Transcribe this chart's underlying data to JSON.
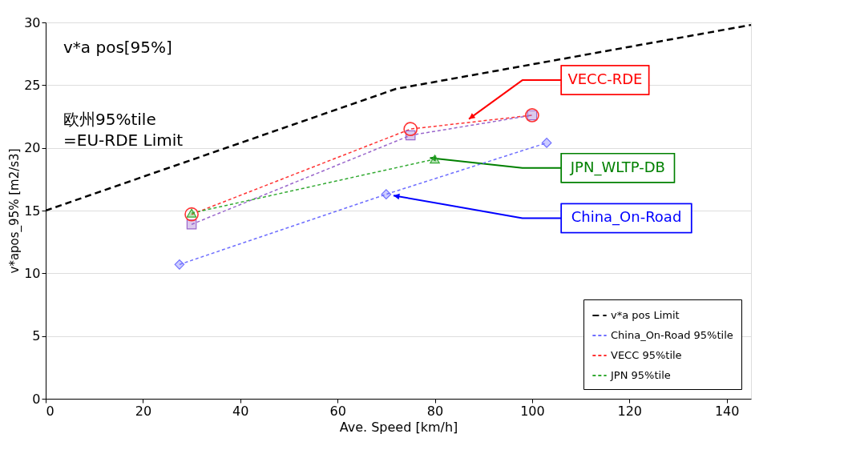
{
  "chart_data": {
    "type": "line",
    "xlabel": "Ave. Speed [km/h]",
    "ylabel": "v*apos_95% [m2/s3]",
    "xlim": [
      0,
      145
    ],
    "xticks": [
      0,
      20,
      40,
      60,
      80,
      100,
      120,
      140
    ],
    "ylim": [
      0,
      30
    ],
    "yticks": [
      0,
      5,
      10,
      15,
      20,
      25,
      30
    ],
    "grid": "y",
    "legend": "bottom right",
    "series": [
      {
        "name": "v*a pos Limit",
        "color": "#000000",
        "line_style": "dashed",
        "marker": "none",
        "x": [
          0,
          72,
          145
        ],
        "values": [
          15.0,
          24.7,
          29.8
        ]
      },
      {
        "name": "China_On-Road 95%tile",
        "color": "#6f6fff",
        "line_style": "dotted",
        "marker": "diamond",
        "x": [
          27.5,
          70,
          103
        ],
        "values": [
          10.7,
          16.3,
          20.4
        ]
      },
      {
        "name": "VECC 95%tile",
        "color": "#ff3333",
        "line_style": "dotted",
        "marker": "circle",
        "x": [
          30,
          75,
          100
        ],
        "values": [
          14.7,
          21.5,
          22.6
        ]
      },
      {
        "color": "#9966cc",
        "line_style": "dotted",
        "marker": "square",
        "x": [
          30,
          75,
          100
        ],
        "values": [
          13.9,
          21.0,
          22.6
        ]
      },
      {
        "name": "JPN 95%tile",
        "color": "#33aa33",
        "line_style": "dotted",
        "marker": "triangle",
        "x": [
          30,
          80
        ],
        "values": [
          14.8,
          19.1
        ]
      }
    ],
    "annotations": [
      "v*a pos[95%]",
      "欧州95%tile\n=EU-RDE Limit",
      {
        "text": "VECC-RDE",
        "x": 87,
        "y": 22.3
      },
      {
        "text": "JPN_WLTP-DB",
        "x": 79,
        "y": 19.2
      },
      {
        "text": "China_On-Road",
        "x": 71.5,
        "y": 16.2
      }
    ]
  }
}
